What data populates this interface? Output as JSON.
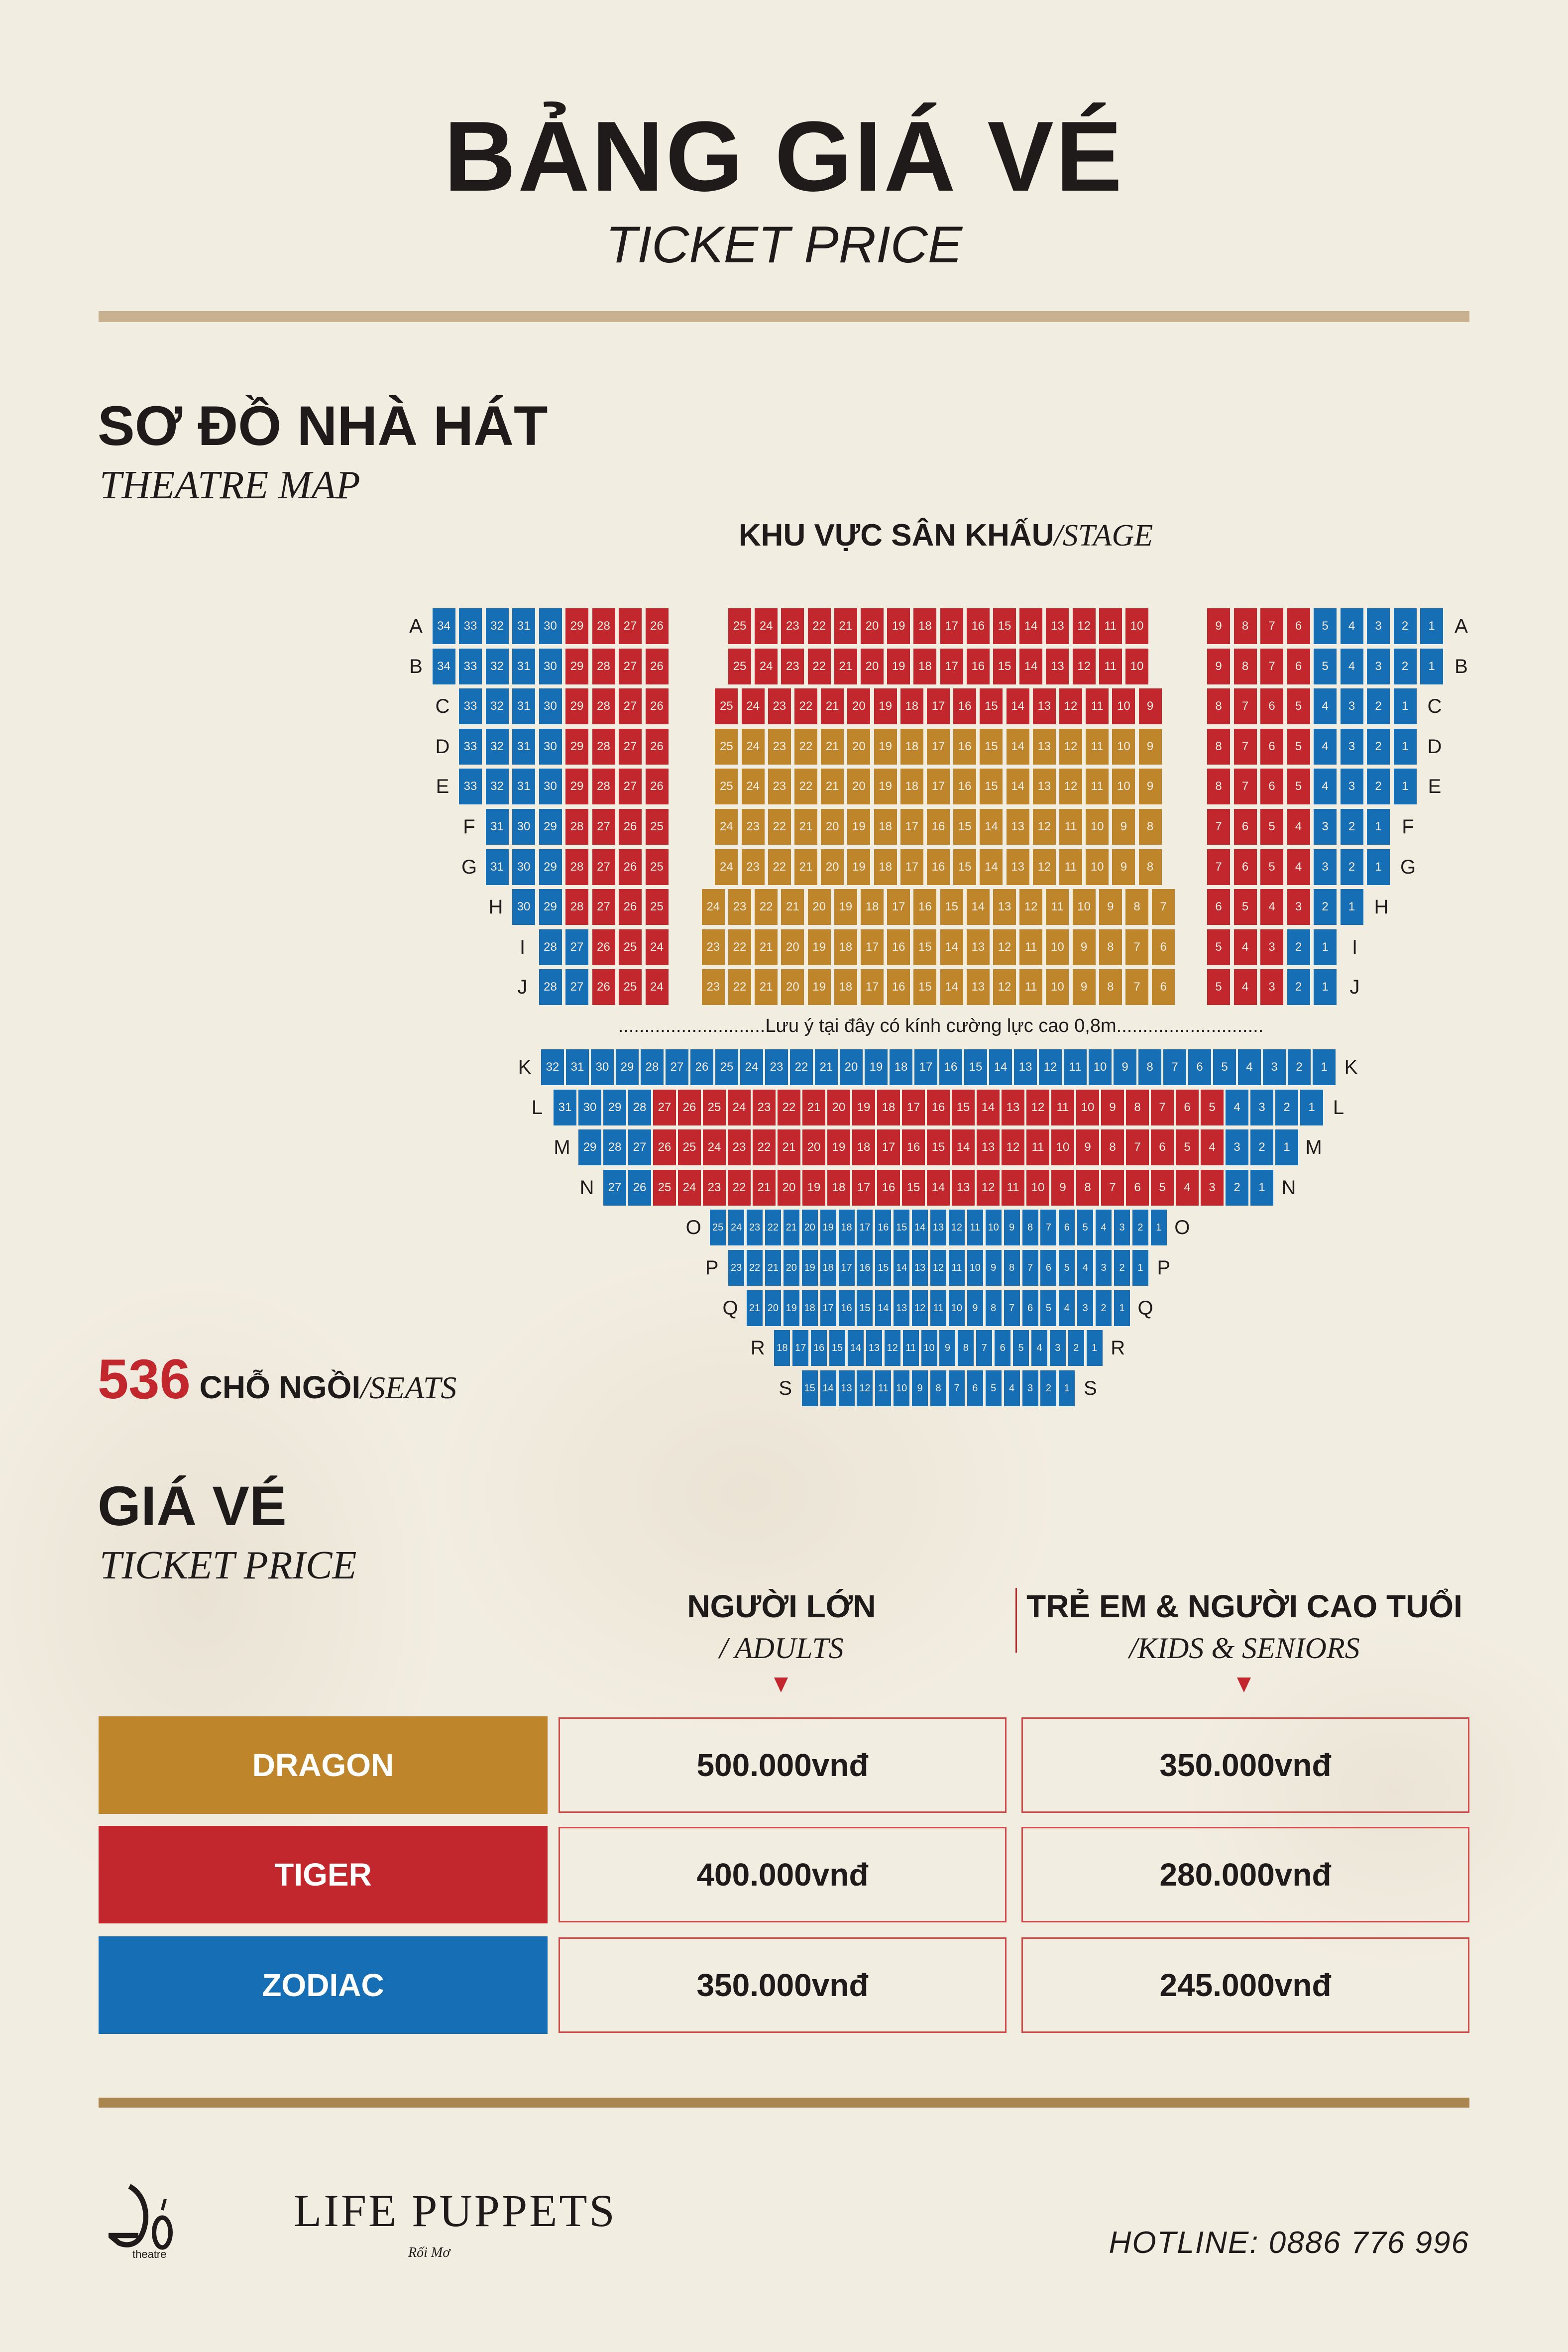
{
  "header": {
    "title": "BẢNG GIÁ VÉ",
    "subtitle": "TICKET PRICE"
  },
  "theatre_map": {
    "heading": "SƠ ĐỒ NHÀ HÁT",
    "subheading": "THEATRE MAP",
    "stage_label_vi": "KHU VỰC SÂN KHẤU",
    "stage_label_en": "/STAGE",
    "glass_note": "............................Lưu ý tại đây có kính cường lực cao 0,8m............................",
    "seat_count": "536",
    "seat_count_vi": " CHỖ NGỒI",
    "seat_count_en": "/SEATS",
    "colors": {
      "zodiac": "#166EB5",
      "tiger": "#C2272D",
      "dragon": "#BF852B"
    },
    "upper_rows": [
      {
        "row": "A",
        "left": [
          [
            34,
            30,
            "blue"
          ],
          [
            29,
            26,
            "red"
          ]
        ],
        "center": [
          [
            25,
            10,
            "red"
          ]
        ],
        "right": [
          [
            9,
            6,
            "red"
          ],
          [
            5,
            1,
            "blue"
          ]
        ]
      },
      {
        "row": "B",
        "left": [
          [
            34,
            30,
            "blue"
          ],
          [
            29,
            26,
            "red"
          ]
        ],
        "center": [
          [
            25,
            10,
            "red"
          ]
        ],
        "right": [
          [
            9,
            6,
            "red"
          ],
          [
            5,
            1,
            "blue"
          ]
        ]
      },
      {
        "row": "C",
        "left": [
          [
            33,
            30,
            "blue"
          ],
          [
            29,
            26,
            "red"
          ]
        ],
        "center": [
          [
            25,
            9,
            "red"
          ]
        ],
        "right": [
          [
            8,
            5,
            "red"
          ],
          [
            4,
            1,
            "blue"
          ]
        ]
      },
      {
        "row": "D",
        "left": [
          [
            33,
            30,
            "blue"
          ],
          [
            29,
            26,
            "red"
          ]
        ],
        "center": [
          [
            25,
            9,
            "gold"
          ]
        ],
        "right": [
          [
            8,
            5,
            "red"
          ],
          [
            4,
            1,
            "blue"
          ]
        ]
      },
      {
        "row": "E",
        "left": [
          [
            33,
            30,
            "blue"
          ],
          [
            29,
            26,
            "red"
          ]
        ],
        "center": [
          [
            25,
            9,
            "gold"
          ]
        ],
        "right": [
          [
            8,
            5,
            "red"
          ],
          [
            4,
            1,
            "blue"
          ]
        ]
      },
      {
        "row": "F",
        "left": [
          [
            31,
            29,
            "blue"
          ],
          [
            28,
            25,
            "red"
          ]
        ],
        "center": [
          [
            24,
            8,
            "gold"
          ]
        ],
        "right": [
          [
            7,
            4,
            "red"
          ],
          [
            3,
            1,
            "blue"
          ]
        ]
      },
      {
        "row": "G",
        "left": [
          [
            31,
            29,
            "blue"
          ],
          [
            28,
            25,
            "red"
          ]
        ],
        "center": [
          [
            24,
            8,
            "gold"
          ]
        ],
        "right": [
          [
            7,
            4,
            "red"
          ],
          [
            3,
            1,
            "blue"
          ]
        ]
      },
      {
        "row": "H",
        "left": [
          [
            30,
            29,
            "blue"
          ],
          [
            28,
            25,
            "red"
          ]
        ],
        "center": [
          [
            24,
            7,
            "gold"
          ]
        ],
        "right": [
          [
            6,
            3,
            "red"
          ],
          [
            2,
            1,
            "blue"
          ]
        ]
      },
      {
        "row": "I",
        "left": [
          [
            28,
            27,
            "blue"
          ],
          [
            26,
            24,
            "red"
          ]
        ],
        "center": [
          [
            23,
            6,
            "gold"
          ]
        ],
        "right": [
          [
            5,
            3,
            "red"
          ],
          [
            2,
            1,
            "blue"
          ]
        ]
      },
      {
        "row": "J",
        "left": [
          [
            28,
            27,
            "blue"
          ],
          [
            26,
            24,
            "red"
          ]
        ],
        "center": [
          [
            23,
            6,
            "gold"
          ]
        ],
        "right": [
          [
            5,
            3,
            "red"
          ],
          [
            2,
            1,
            "blue"
          ]
        ]
      }
    ],
    "lower_rows": [
      {
        "row": "K",
        "seats": [
          [
            32,
            1,
            "blue"
          ]
        ]
      },
      {
        "row": "L",
        "seats": [
          [
            31,
            28,
            "blue"
          ],
          [
            27,
            5,
            "red"
          ],
          [
            4,
            1,
            "blue"
          ]
        ]
      },
      {
        "row": "M",
        "seats": [
          [
            29,
            27,
            "blue"
          ],
          [
            26,
            4,
            "red"
          ],
          [
            3,
            1,
            "blue"
          ]
        ]
      },
      {
        "row": "N",
        "seats": [
          [
            27,
            26,
            "blue"
          ],
          [
            25,
            3,
            "red"
          ],
          [
            2,
            1,
            "blue"
          ]
        ]
      },
      {
        "row": "O",
        "seats": [
          [
            25,
            1,
            "blue"
          ]
        ]
      },
      {
        "row": "P",
        "seats": [
          [
            23,
            1,
            "blue"
          ]
        ]
      },
      {
        "row": "Q",
        "seats": [
          [
            21,
            1,
            "blue"
          ]
        ]
      },
      {
        "row": "R",
        "seats": [
          [
            18,
            1,
            "blue"
          ]
        ]
      },
      {
        "row": "S",
        "seats": [
          [
            15,
            1,
            "blue"
          ]
        ]
      }
    ]
  },
  "pricing": {
    "heading": "GIÁ VÉ",
    "subheading": "TICKET PRICE",
    "columns": [
      {
        "vi": "NGƯỜI LỚN",
        "en": "/ ADULTS"
      },
      {
        "vi": "TRẺ EM & NGƯỜI CAO TUỔI",
        "en": "/KIDS & SENIORS"
      }
    ],
    "rows": [
      {
        "category": "DRAGON",
        "color": "#BF852B",
        "adults": "500.000vnđ",
        "kids_seniors": "350.000vnđ"
      },
      {
        "category": "TIGER",
        "color": "#C2272D",
        "adults": "400.000vnđ",
        "kids_seniors": "280.000vnđ"
      },
      {
        "category": "ZODIAC",
        "color": "#166EB5",
        "adults": "350.000vnđ",
        "kids_seniors": "245.000vnđ"
      }
    ]
  },
  "footer": {
    "logo_do_sub": "theatre",
    "logo_lp": "LIFE PUPPETS",
    "logo_lp_sub": "Rối Mơ",
    "hotline": "HOTLINE: 0886 776 996"
  }
}
